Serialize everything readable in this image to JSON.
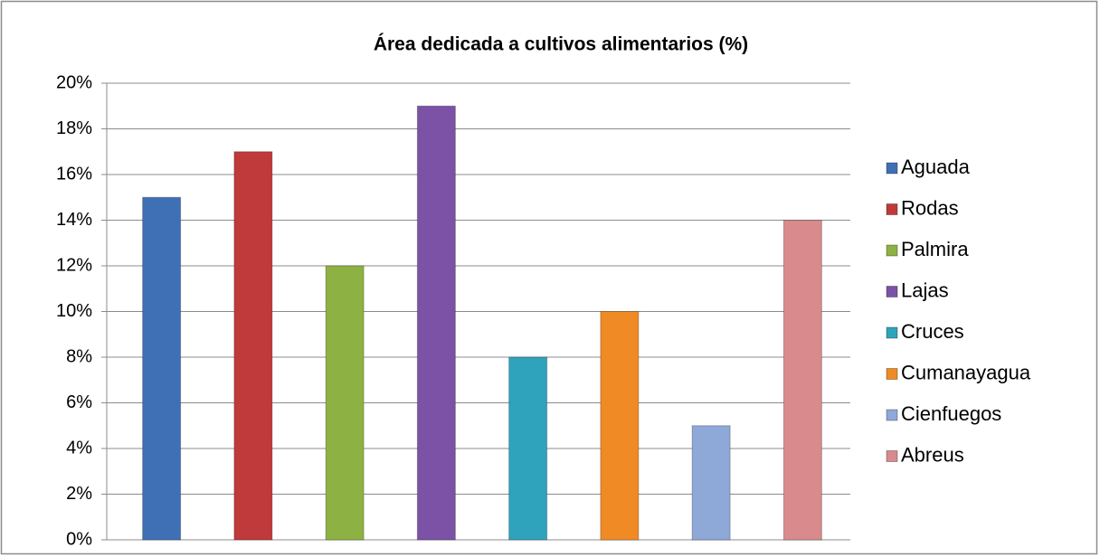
{
  "chart_data": {
    "type": "bar",
    "title": "Área dedicada a cultivos alimentarios (%)",
    "series": [
      {
        "name": "Aguada",
        "color": "#3f6fb5",
        "values": [
          15
        ]
      },
      {
        "name": "Rodas",
        "color": "#c0393b",
        "values": [
          17
        ]
      },
      {
        "name": "Palmira",
        "color": "#8db243",
        "values": [
          12
        ]
      },
      {
        "name": "Lajas",
        "color": "#7b52a6",
        "values": [
          19
        ]
      },
      {
        "name": "Cruces",
        "color": "#2fa3bc",
        "values": [
          8
        ]
      },
      {
        "name": "Cumanayagua",
        "color": "#f08a24",
        "values": [
          10
        ]
      },
      {
        "name": "Cienfuegos",
        "color": "#8ea8d8",
        "values": [
          5
        ]
      },
      {
        "name": "Abreus",
        "color": "#d98a8c",
        "values": [
          14
        ]
      }
    ],
    "ylim": [
      0,
      20
    ],
    "yticks": [
      {
        "value": 0,
        "label": "0%"
      },
      {
        "value": 2,
        "label": "2%"
      },
      {
        "value": 4,
        "label": "4%"
      },
      {
        "value": 6,
        "label": "6%"
      },
      {
        "value": 8,
        "label": "8%"
      },
      {
        "value": 10,
        "label": "10%"
      },
      {
        "value": 12,
        "label": "12%"
      },
      {
        "value": 14,
        "label": "14%"
      },
      {
        "value": 16,
        "label": "16%"
      },
      {
        "value": 18,
        "label": "18%"
      },
      {
        "value": 20,
        "label": "20%"
      }
    ],
    "grid": true,
    "legend": "right"
  }
}
